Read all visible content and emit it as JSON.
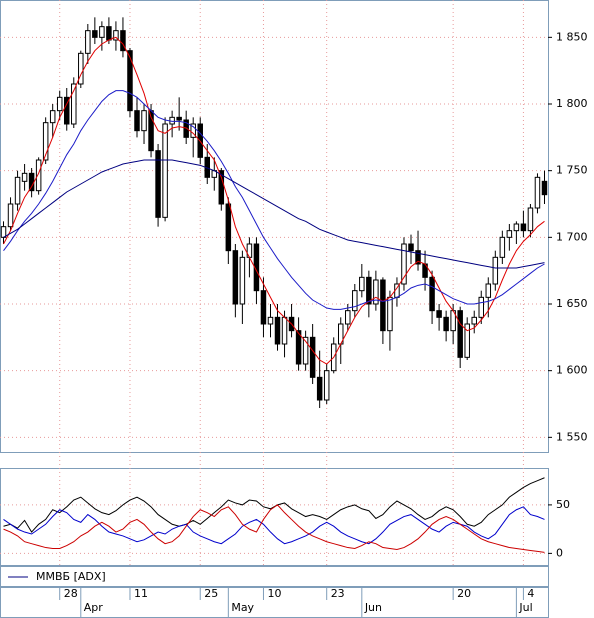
{
  "chart_data": [
    {
      "type": "candlestick",
      "categories": [
        null,
        null,
        null,
        null,
        null,
        null,
        null,
        null,
        "28",
        null,
        null,
        null,
        null,
        null,
        null,
        null,
        null,
        null,
        "11",
        null,
        null,
        null,
        null,
        null,
        null,
        null,
        null,
        null,
        "25",
        null,
        null,
        null,
        null,
        null,
        null,
        null,
        null,
        "10",
        null,
        null,
        null,
        null,
        null,
        null,
        null,
        null,
        "23",
        null,
        null,
        null,
        null,
        null,
        null,
        null,
        null,
        null,
        null,
        null,
        null,
        null,
        null,
        null,
        null,
        null,
        "20",
        null,
        null,
        null,
        null,
        null,
        null,
        null,
        null,
        null,
        "4",
        null,
        null,
        null
      ],
      "months": [
        null,
        null,
        null,
        null,
        null,
        null,
        null,
        null,
        null,
        null,
        null,
        "Apr",
        null,
        null,
        null,
        null,
        null,
        null,
        null,
        null,
        null,
        null,
        null,
        null,
        null,
        null,
        null,
        null,
        null,
        null,
        null,
        null,
        "May",
        null,
        null,
        null,
        null,
        null,
        null,
        null,
        null,
        null,
        null,
        null,
        null,
        null,
        null,
        null,
        null,
        null,
        null,
        "Jun",
        null,
        null,
        null,
        null,
        null,
        null,
        null,
        null,
        null,
        null,
        null,
        null,
        null,
        null,
        null,
        null,
        null,
        null,
        null,
        null,
        null,
        "Jul",
        null,
        null,
        null,
        null
      ],
      "open": [
        1700,
        1708,
        1725,
        1742,
        1748,
        1735,
        1758,
        1786,
        1795,
        1805,
        1785,
        1815,
        1838,
        1855,
        1850,
        1858,
        1848,
        1855,
        1840,
        1795,
        1780,
        1795,
        1765,
        1715,
        1785,
        1790,
        1788,
        1775,
        1785,
        1760,
        1745,
        1750,
        1725,
        1690,
        1650,
        1685,
        1695,
        1660,
        1635,
        1640,
        1620,
        1640,
        1630,
        1605,
        1625,
        1595,
        1578,
        1600,
        1620,
        1635,
        1645,
        1660,
        1670,
        1650,
        1668,
        1630,
        1655,
        1665,
        1695,
        1690,
        1680,
        1670,
        1645,
        1640,
        1630,
        1645,
        1610,
        1635,
        1640,
        1655,
        1665,
        1685,
        1700,
        1705,
        1710,
        1705,
        1722,
        1742
      ],
      "high": [
        1712,
        1730,
        1750,
        1755,
        1752,
        1760,
        1790,
        1800,
        1810,
        1812,
        1820,
        1840,
        1860,
        1865,
        1862,
        1865,
        1862,
        1865,
        1842,
        1805,
        1800,
        1800,
        1770,
        1790,
        1795,
        1805,
        1795,
        1790,
        1790,
        1770,
        1760,
        1752,
        1730,
        1695,
        1690,
        1700,
        1700,
        1670,
        1650,
        1650,
        1645,
        1650,
        1640,
        1630,
        1635,
        1615,
        1605,
        1625,
        1640,
        1650,
        1665,
        1680,
        1675,
        1675,
        1670,
        1660,
        1670,
        1700,
        1702,
        1705,
        1690,
        1675,
        1650,
        1645,
        1650,
        1648,
        1640,
        1645,
        1660,
        1670,
        1690,
        1705,
        1710,
        1712,
        1720,
        1725,
        1748,
        1750
      ],
      "low": [
        1695,
        1705,
        1720,
        1735,
        1730,
        1732,
        1755,
        1775,
        1788,
        1780,
        1782,
        1812,
        1830,
        1845,
        1840,
        1845,
        1840,
        1835,
        1790,
        1775,
        1770,
        1760,
        1708,
        1712,
        1775,
        1780,
        1770,
        1760,
        1755,
        1740,
        1735,
        1720,
        1680,
        1640,
        1635,
        1670,
        1650,
        1625,
        1625,
        1615,
        1610,
        1625,
        1600,
        1600,
        1590,
        1572,
        1575,
        1598,
        1605,
        1630,
        1640,
        1655,
        1640,
        1645,
        1620,
        1615,
        1648,
        1660,
        1680,
        1675,
        1660,
        1635,
        1630,
        1622,
        1620,
        1602,
        1608,
        1628,
        1635,
        1640,
        1660,
        1680,
        1690,
        1695,
        1700,
        1700,
        1718,
        1725
      ],
      "close": [
        1708,
        1725,
        1745,
        1748,
        1735,
        1758,
        1786,
        1795,
        1805,
        1785,
        1815,
        1838,
        1855,
        1850,
        1858,
        1848,
        1855,
        1840,
        1795,
        1780,
        1795,
        1765,
        1715,
        1785,
        1790,
        1788,
        1775,
        1785,
        1760,
        1745,
        1750,
        1725,
        1690,
        1650,
        1685,
        1695,
        1660,
        1635,
        1640,
        1620,
        1640,
        1630,
        1605,
        1625,
        1595,
        1578,
        1600,
        1620,
        1635,
        1645,
        1660,
        1670,
        1650,
        1668,
        1630,
        1655,
        1665,
        1695,
        1690,
        1680,
        1670,
        1645,
        1640,
        1630,
        1645,
        1610,
        1635,
        1640,
        1655,
        1665,
        1685,
        1700,
        1705,
        1710,
        1705,
        1722,
        1745,
        1732
      ],
      "series": [
        {
          "color": "#e00000",
          "values": [
            1695,
            1705,
            1718,
            1730,
            1738,
            1748,
            1762,
            1775,
            1790,
            1800,
            1810,
            1822,
            1832,
            1840,
            1845,
            1848,
            1850,
            1845,
            1835,
            1822,
            1808,
            1790,
            1780,
            1778,
            1782,
            1783,
            1782,
            1778,
            1772,
            1765,
            1758,
            1745,
            1728,
            1708,
            1695,
            1685,
            1675,
            1665,
            1655,
            1645,
            1640,
            1635,
            1628,
            1622,
            1615,
            1608,
            1605,
            1610,
            1620,
            1630,
            1640,
            1648,
            1652,
            1655,
            1652,
            1655,
            1662,
            1670,
            1678,
            1682,
            1680,
            1672,
            1662,
            1652,
            1645,
            1635,
            1630,
            1632,
            1638,
            1645,
            1655,
            1668,
            1680,
            1690,
            1697,
            1702,
            1708,
            1712
          ]
        },
        {
          "color": "#1c1cc8",
          "values": [
            1690,
            1697,
            1705,
            1712,
            1718,
            1725,
            1733,
            1742,
            1752,
            1762,
            1770,
            1780,
            1788,
            1795,
            1802,
            1807,
            1810,
            1810,
            1808,
            1805,
            1800,
            1795,
            1790,
            1788,
            1787,
            1787,
            1786,
            1783,
            1778,
            1772,
            1765,
            1757,
            1748,
            1738,
            1730,
            1720,
            1710,
            1700,
            1692,
            1684,
            1677,
            1670,
            1664,
            1658,
            1653,
            1650,
            1647,
            1646,
            1646,
            1647,
            1648,
            1650,
            1652,
            1653,
            1652,
            1653,
            1655,
            1658,
            1662,
            1664,
            1665,
            1663,
            1660,
            1657,
            1654,
            1652,
            1650,
            1650,
            1651,
            1652,
            1654,
            1657,
            1661,
            1665,
            1669,
            1673,
            1677,
            1680
          ]
        },
        {
          "color": "#000080",
          "values": [
            1700,
            1703,
            1706,
            1710,
            1714,
            1718,
            1722,
            1726,
            1730,
            1734,
            1737,
            1740,
            1743,
            1746,
            1749,
            1751,
            1753,
            1755,
            1756,
            1757,
            1758,
            1758,
            1758,
            1758,
            1758,
            1757,
            1756,
            1755,
            1754,
            1752,
            1750,
            1747,
            1744,
            1741,
            1738,
            1735,
            1732,
            1729,
            1726,
            1723,
            1720,
            1717,
            1714,
            1712,
            1709,
            1706,
            1704,
            1702,
            1700,
            1698,
            1697,
            1696,
            1695,
            1694,
            1693,
            1692,
            1691,
            1690,
            1689,
            1688,
            1687,
            1686,
            1685,
            1684,
            1683,
            1682,
            1681,
            1680,
            1679,
            1678,
            1677,
            1677,
            1677,
            1677,
            1678,
            1679,
            1680,
            1681
          ]
        }
      ],
      "up_color": "#ffffff",
      "down_color": "#000000",
      "ylim": [
        1539,
        1875
      ],
      "yticks": [
        {
          "value": 1550,
          "label": "1 550"
        },
        {
          "value": 1600,
          "label": "1 600"
        },
        {
          "value": 1650,
          "label": "1 650"
        },
        {
          "value": 1700,
          "label": "1 700"
        },
        {
          "value": 1750,
          "label": "1 750"
        },
        {
          "value": 1800,
          "label": "1 800"
        },
        {
          "value": 1850,
          "label": "1 850"
        }
      ],
      "grid": true
    },
    {
      "type": "line",
      "legend_label": "ММВБ [ADX]",
      "legend_color": "#000080",
      "series": [
        {
          "color": "#000000",
          "values": [
            28,
            30,
            26,
            34,
            22,
            30,
            35,
            45,
            42,
            48,
            55,
            58,
            52,
            46,
            42,
            40,
            44,
            50,
            55,
            58,
            54,
            48,
            40,
            35,
            30,
            28,
            30,
            34,
            30,
            36,
            42,
            48,
            55,
            52,
            50,
            55,
            54,
            48,
            46,
            50,
            52,
            46,
            42,
            38,
            40,
            38,
            35,
            40,
            45,
            48,
            50,
            46,
            44,
            36,
            40,
            48,
            54,
            50,
            46,
            40,
            35,
            38,
            44,
            48,
            45,
            38,
            30,
            28,
            32,
            40,
            45,
            50,
            58,
            63,
            68,
            72,
            75,
            78
          ]
        },
        {
          "color": "#0000cc",
          "values": [
            35,
            30,
            25,
            22,
            20,
            25,
            30,
            38,
            45,
            42,
            35,
            32,
            40,
            35,
            28,
            22,
            20,
            18,
            15,
            12,
            14,
            18,
            22,
            20,
            25,
            28,
            30,
            22,
            18,
            15,
            12,
            10,
            15,
            20,
            28,
            32,
            35,
            30,
            22,
            15,
            10,
            12,
            15,
            18,
            22,
            28,
            32,
            28,
            22,
            18,
            15,
            12,
            10,
            15,
            22,
            30,
            34,
            38,
            40,
            35,
            30,
            25,
            22,
            28,
            32,
            30,
            28,
            22,
            18,
            15,
            20,
            30,
            40,
            45,
            48,
            40,
            38,
            35
          ]
        },
        {
          "color": "#cc0000",
          "values": [
            25,
            22,
            18,
            12,
            10,
            8,
            6,
            5,
            5,
            8,
            12,
            18,
            22,
            28,
            32,
            28,
            22,
            25,
            32,
            35,
            30,
            22,
            15,
            10,
            12,
            18,
            28,
            38,
            45,
            42,
            38,
            45,
            48,
            40,
            30,
            25,
            22,
            35,
            45,
            50,
            42,
            35,
            28,
            22,
            18,
            15,
            12,
            10,
            8,
            6,
            5,
            8,
            12,
            10,
            6,
            5,
            4,
            6,
            10,
            15,
            22,
            30,
            35,
            38,
            35,
            30,
            25,
            20,
            15,
            12,
            10,
            8,
            6,
            5,
            4,
            3,
            2,
            1
          ]
        }
      ],
      "ylim": [
        -12,
        86
      ],
      "yticks": [
        0,
        50
      ],
      "grid": true
    }
  ]
}
